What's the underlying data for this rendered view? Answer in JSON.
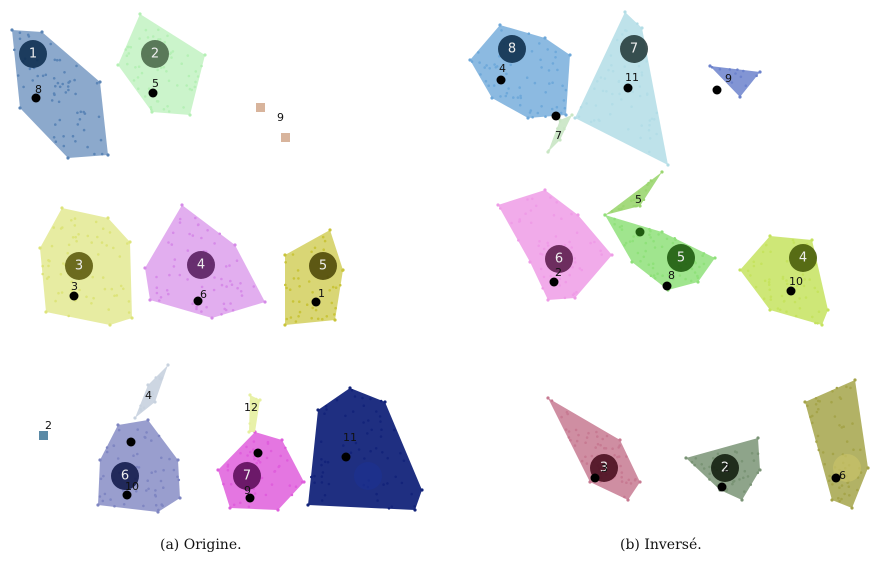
{
  "panels": [
    {
      "caption": "(a) Origine.",
      "clusters": [
        {
          "id": "1",
          "color": "#5b85b6"
        },
        {
          "id": "2",
          "color": "#b5f0b5"
        },
        {
          "id": "3",
          "color": "#dde47a"
        },
        {
          "id": "4",
          "color": "#d58be8"
        },
        {
          "id": "5",
          "color": "#c9c43a"
        },
        {
          "id": "6",
          "color": "#7f86c2"
        },
        {
          "id": "7",
          "color": "#df5edc"
        },
        {
          "id": "",
          "color": "#13247a"
        },
        {
          "id": "",
          "color": "#c8d2df"
        },
        {
          "id": "",
          "color": "#e6f0a0"
        }
      ],
      "labels": [
        "8",
        "5",
        "9",
        "3",
        "6",
        "1",
        "2",
        "4",
        "12",
        "11",
        "10",
        "9"
      ]
    },
    {
      "caption": "(b) Inversé.",
      "clusters": [
        {
          "id": "8",
          "color": "#6fa9da"
        },
        {
          "id": "7",
          "color": "#b3dde6"
        },
        {
          "id": "",
          "color": "#6c82cc"
        },
        {
          "id": "6",
          "color": "#ee9ce6"
        },
        {
          "id": "5",
          "color": "#8fe07a"
        },
        {
          "id": "4",
          "color": "#c5e35f"
        },
        {
          "id": "3",
          "color": "#c77a92"
        },
        {
          "id": "2",
          "color": "#7a9476"
        },
        {
          "id": "",
          "color": "#a5a44a"
        },
        {
          "id": "",
          "color": "#c9e6c4"
        },
        {
          "id": "",
          "color": "#9bd670"
        }
      ],
      "labels": [
        "4",
        "11",
        "9",
        "7",
        "5",
        "2",
        "8",
        "10",
        "3",
        "2",
        "6"
      ]
    }
  ]
}
